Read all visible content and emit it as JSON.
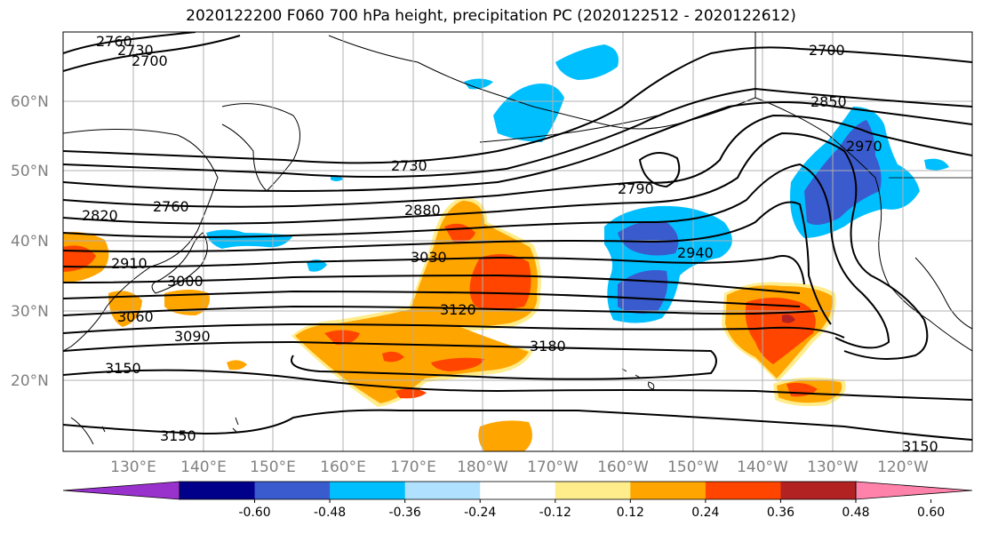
{
  "title": "2020122200 F060 700 hPa height, precipitation PC (2020122512 - 2020122612)",
  "colors": {
    "land_outline": "#000000",
    "grid": "#b0b0b0",
    "contour": "#000000"
  },
  "lat_labels": [
    "60°N",
    "50°N",
    "40°N",
    "30°N",
    "20°N"
  ],
  "lon_labels": [
    "130°E",
    "140°E",
    "150°E",
    "160°E",
    "170°E",
    "180°W",
    "170°W",
    "160°W",
    "150°W",
    "140°W",
    "130°W",
    "120°W"
  ],
  "contour_labels": [
    "2760",
    "2730",
    "2700",
    "2700",
    "2850",
    "2970",
    "2730",
    "2790",
    "2820",
    "2760",
    "2880",
    "2940",
    "2910",
    "3030",
    "3000",
    "3120",
    "3060",
    "3090",
    "3180",
    "3150",
    "3150",
    "3150"
  ],
  "colorbar": {
    "tick_labels": [
      "-0.60",
      "-0.48",
      "-0.36",
      "-0.24",
      "-0.12",
      "0.12",
      "0.24",
      "0.36",
      "0.48",
      "0.60"
    ],
    "bins": [
      {
        "color": "#9932cc"
      },
      {
        "color": "#00008b"
      },
      {
        "color": "#3a5bcd"
      },
      {
        "color": "#00bfff"
      },
      {
        "color": "#b0e2ff"
      },
      {
        "color": "#ffffff"
      },
      {
        "color": "#ffec8b"
      },
      {
        "color": "#ffa500"
      },
      {
        "color": "#ff4500"
      },
      {
        "color": "#b22222"
      },
      {
        "color": "#ff82ab"
      }
    ]
  }
}
